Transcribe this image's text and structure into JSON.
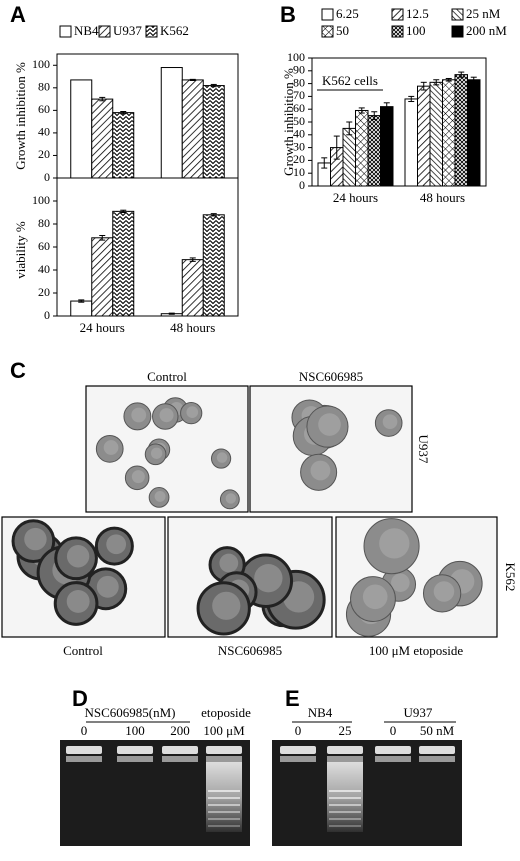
{
  "panel_labels": [
    "A",
    "B",
    "C",
    "D",
    "E"
  ],
  "chart_data": [
    {
      "type": "bar",
      "ylabel": "Growth inhibition %",
      "categories": [
        null,
        null
      ],
      "series": [
        {
          "name": "NB4",
          "color": "#ffffff",
          "values": [
            87,
            98
          ]
        },
        {
          "name": "U937",
          "color": "#ffffff",
          "pattern": "hatch",
          "values": [
            70,
            87
          ],
          "errors": [
            1.5,
            0.5
          ]
        },
        {
          "name": "K562",
          "color": "#ffffff",
          "pattern": "zigzag",
          "values": [
            58,
            82
          ],
          "errors": [
            1,
            1
          ]
        }
      ],
      "ylim": [
        0,
        110
      ],
      "yticks": [
        0,
        20,
        40,
        60,
        80,
        100
      ],
      "legend": "top"
    },
    {
      "type": "bar",
      "ylabel": "viability %",
      "categories": [
        "24 hours",
        "48 hours"
      ],
      "series": [
        {
          "color": "#ffffff",
          "values": [
            13,
            2
          ],
          "errors": [
            1,
            0.5
          ]
        },
        {
          "color": "#ffffff",
          "pattern": "hatch",
          "values": [
            68,
            49
          ],
          "errors": [
            2,
            1.5
          ]
        },
        {
          "color": "#ffffff",
          "pattern": "zigzag",
          "values": [
            91,
            88
          ],
          "errors": [
            1,
            1
          ]
        }
      ],
      "ylim": [
        0,
        120
      ],
      "yticks": [
        0,
        20,
        40,
        60,
        80,
        100
      ]
    },
    {
      "type": "bar",
      "ylabel": "Growth inhibition %",
      "annotation": "K562 cells",
      "categories": [
        "24 hours",
        "48 hours"
      ],
      "series": [
        {
          "name": "6.25",
          "color": "#ffffff",
          "values": [
            18,
            68
          ],
          "errors": [
            4,
            2
          ]
        },
        {
          "name": "12.5",
          "color": "#ffffff",
          "pattern": "hatch",
          "values": [
            30,
            78
          ],
          "errors": [
            9,
            3
          ]
        },
        {
          "name": "25 nM",
          "color": "#ffffff",
          "pattern": "hatch2",
          "values": [
            45,
            81
          ],
          "errors": [
            5,
            2
          ]
        },
        {
          "name": "50",
          "color": "#ffffff",
          "pattern": "cross",
          "values": [
            59,
            83
          ],
          "errors": [
            2,
            1
          ]
        },
        {
          "name": "100",
          "color": "#ffffff",
          "pattern": "cross2",
          "values": [
            55,
            87
          ],
          "errors": [
            3,
            2
          ]
        },
        {
          "name": "200 nM",
          "color": "#000000",
          "values": [
            62,
            83
          ],
          "errors": [
            3,
            2
          ]
        }
      ],
      "ylim": [
        0,
        100
      ],
      "yticks": [
        0,
        10,
        20,
        30,
        40,
        50,
        60,
        70,
        80,
        90,
        100
      ],
      "legend": "top"
    }
  ],
  "micrographs": {
    "column_labels": [
      "Control",
      "NSC606985"
    ],
    "row_labels": [
      "U937",
      "K562"
    ],
    "bottom_labels": [
      "Control",
      "NSC606985",
      "100 μM etoposide"
    ]
  },
  "gels": {
    "d": {
      "header": "NSC606985(nM)",
      "header2": "etoposide",
      "lanes": [
        "0",
        "100",
        "200",
        "100 μM"
      ]
    },
    "e": {
      "groups": [
        "NB4",
        "U937"
      ],
      "lanes": [
        "0",
        "25",
        "0",
        "50 nM"
      ]
    }
  }
}
